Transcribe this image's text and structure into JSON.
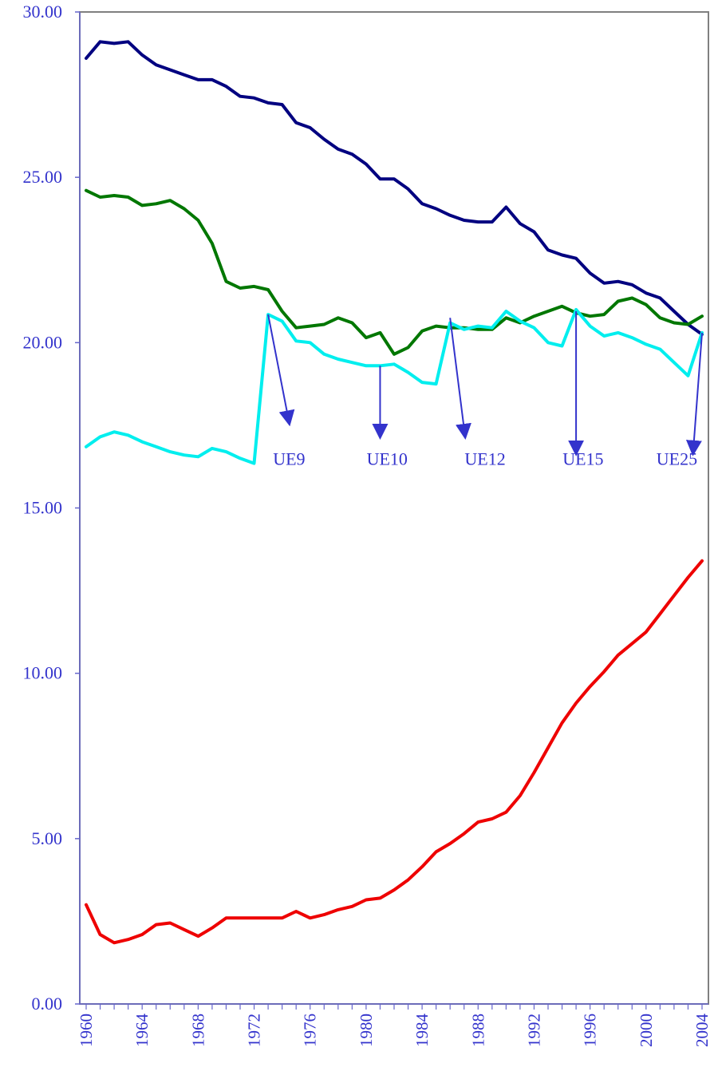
{
  "chart_data": {
    "type": "line",
    "title": "",
    "xlabel": "",
    "ylabel": "",
    "x": [
      1960,
      1961,
      1962,
      1963,
      1964,
      1965,
      1966,
      1967,
      1968,
      1969,
      1970,
      1971,
      1972,
      1973,
      1974,
      1975,
      1976,
      1977,
      1978,
      1979,
      1980,
      1981,
      1982,
      1983,
      1984,
      1985,
      1986,
      1987,
      1988,
      1989,
      1990,
      1991,
      1992,
      1993,
      1994,
      1995,
      1996,
      1997,
      1998,
      1999,
      2000,
      2001,
      2002,
      2003,
      2004
    ],
    "xlim": [
      1960,
      2004
    ],
    "ylim": [
      0,
      30
    ],
    "y_ticks": [
      "0.00",
      "5.00",
      "10.00",
      "15.00",
      "20.00",
      "25.00",
      "30.00"
    ],
    "x_ticks": [
      "1960",
      "1964",
      "1968",
      "1972",
      "1976",
      "1980",
      "1984",
      "1988",
      "1992",
      "1996",
      "2000",
      "2004"
    ],
    "grid": false,
    "series": [
      {
        "color": "#000080",
        "values": [
          28.6,
          29.1,
          29.05,
          29.1,
          28.7,
          28.4,
          28.25,
          28.1,
          27.95,
          27.95,
          27.75,
          27.45,
          27.4,
          27.25,
          27.2,
          26.65,
          26.5,
          26.15,
          25.85,
          25.7,
          25.4,
          24.95,
          24.95,
          24.65,
          24.2,
          24.05,
          23.85,
          23.7,
          23.65,
          23.65,
          24.1,
          23.6,
          23.35,
          22.8,
          22.65,
          22.55,
          22.1,
          21.8,
          21.85,
          21.75,
          21.5,
          21.35,
          20.95,
          20.55,
          20.25
        ]
      },
      {
        "color": "#007700",
        "values": [
          24.6,
          24.4,
          24.45,
          24.4,
          24.15,
          24.2,
          24.3,
          24.05,
          23.7,
          23.0,
          21.85,
          21.65,
          21.7,
          21.6,
          20.95,
          20.45,
          20.5,
          20.55,
          20.75,
          20.6,
          20.15,
          20.3,
          19.65,
          19.85,
          20.35,
          20.5,
          20.45,
          20.45,
          20.4,
          20.4,
          20.75,
          20.6,
          20.8,
          20.95,
          21.1,
          20.9,
          20.8,
          20.85,
          21.25,
          21.35,
          21.15,
          20.75,
          20.6,
          20.55,
          20.8
        ]
      },
      {
        "color": "#00eeee",
        "values": [
          16.85,
          17.15,
          17.3,
          17.2,
          17.0,
          16.85,
          16.7,
          16.6,
          16.55,
          16.8,
          16.7,
          16.5,
          16.35,
          20.85,
          20.65,
          20.05,
          20.0,
          19.65,
          19.5,
          19.4,
          19.3,
          19.3,
          19.35,
          19.1,
          18.8,
          18.75,
          20.6,
          20.4,
          20.5,
          20.45,
          20.95,
          20.65,
          20.45,
          20.0,
          19.9,
          21.0,
          20.5,
          20.2,
          20.3,
          20.15,
          19.95,
          19.8,
          19.4,
          19.0,
          20.3
        ]
      },
      {
        "color": "#ee0000",
        "values": [
          3.0,
          2.1,
          1.85,
          1.95,
          2.1,
          2.4,
          2.45,
          2.25,
          2.05,
          2.3,
          2.6,
          2.6,
          2.6,
          2.6,
          2.6,
          2.8,
          2.6,
          2.7,
          2.85,
          2.95,
          3.15,
          3.2,
          3.45,
          3.75,
          4.15,
          4.6,
          4.85,
          5.15,
          5.5,
          5.6,
          5.8,
          6.3,
          7.0,
          7.75,
          8.5,
          9.1,
          9.6,
          10.05,
          10.55,
          10.9,
          11.25,
          11.8,
          12.35,
          12.9,
          13.4
        ]
      }
    ],
    "annotations": [
      {
        "label": "UE9",
        "label_x": 1974.5,
        "label_y": 16.3,
        "from_x": 1973.0,
        "from_y": 20.85,
        "to_x": 1974.4,
        "to_y": 17.8
      },
      {
        "label": "UE10",
        "label_x": 1981.5,
        "label_y": 16.3,
        "from_x": 1981.0,
        "from_y": 19.3,
        "to_x": 1981.0,
        "to_y": 17.4
      },
      {
        "label": "UE12",
        "label_x": 1988.5,
        "label_y": 16.3,
        "from_x": 1986.0,
        "from_y": 20.75,
        "to_x": 1987.0,
        "to_y": 17.4
      },
      {
        "label": "UE15",
        "label_x": 1995.5,
        "label_y": 16.3,
        "from_x": 1995.0,
        "from_y": 20.95,
        "to_x": 1995.0,
        "to_y": 16.9
      },
      {
        "label": "UE25",
        "label_x": 2002.2,
        "label_y": 16.3,
        "from_x": 2004.0,
        "from_y": 20.3,
        "to_x": 2003.4,
        "to_y": 16.9
      }
    ]
  }
}
